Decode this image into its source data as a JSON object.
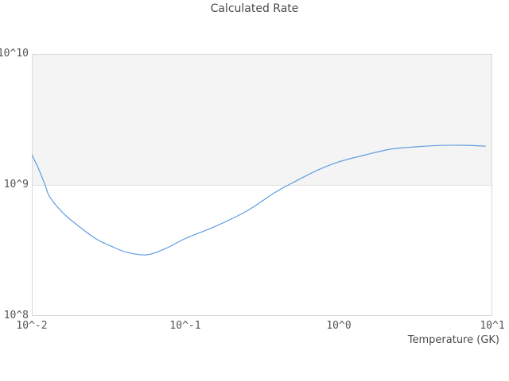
{
  "chart_data": {
    "type": "line",
    "title": "Calculated Rate",
    "xlabel": "Temperature (GK)",
    "ylabel": "",
    "x_scale": "log",
    "y_scale": "log",
    "x_range": [
      0.01,
      10
    ],
    "y_range": [
      100000000.0,
      10000000000.0
    ],
    "x_ticks": [
      "10^-2",
      "10^-1",
      "10^0",
      "10^1"
    ],
    "y_ticks": [
      "10^10",
      "10^9",
      "10^8"
    ],
    "grid": "horizontal-decades-only",
    "legend": "none",
    "band": {
      "from": 1000000000.0,
      "to": 10000000000.0,
      "color": "#f4f4f4"
    },
    "line_color": "#5f9ddf",
    "frame_color": "#d9d9d9",
    "text_color": "#4a4a4a",
    "tick_color": "#555555",
    "series": [
      {
        "name": "Calculated Rate",
        "x": [
          0.01,
          0.011,
          0.0122,
          0.0131,
          0.016,
          0.0204,
          0.026,
          0.033,
          0.042,
          0.0563,
          0.0757,
          0.1,
          0.155,
          0.25,
          0.38,
          0.47,
          0.73,
          1.0,
          1.5,
          2.15,
          3.1,
          4.4,
          6.3,
          9.0
        ],
        "y": [
          1700000000.0,
          1350000000.0,
          1000000000.0,
          810000000.0,
          610000000.0,
          480000000.0,
          390000000.0,
          340000000.0,
          305000000.0,
          293000000.0,
          330000000.0,
          390000000.0,
          480000000.0,
          630000000.0,
          870000000.0,
          1000000000.0,
          1300000000.0,
          1500000000.0,
          1700000000.0,
          1870000000.0,
          1950000000.0,
          2000000000.0,
          2010000000.0,
          1980000000.0
        ]
      }
    ]
  }
}
